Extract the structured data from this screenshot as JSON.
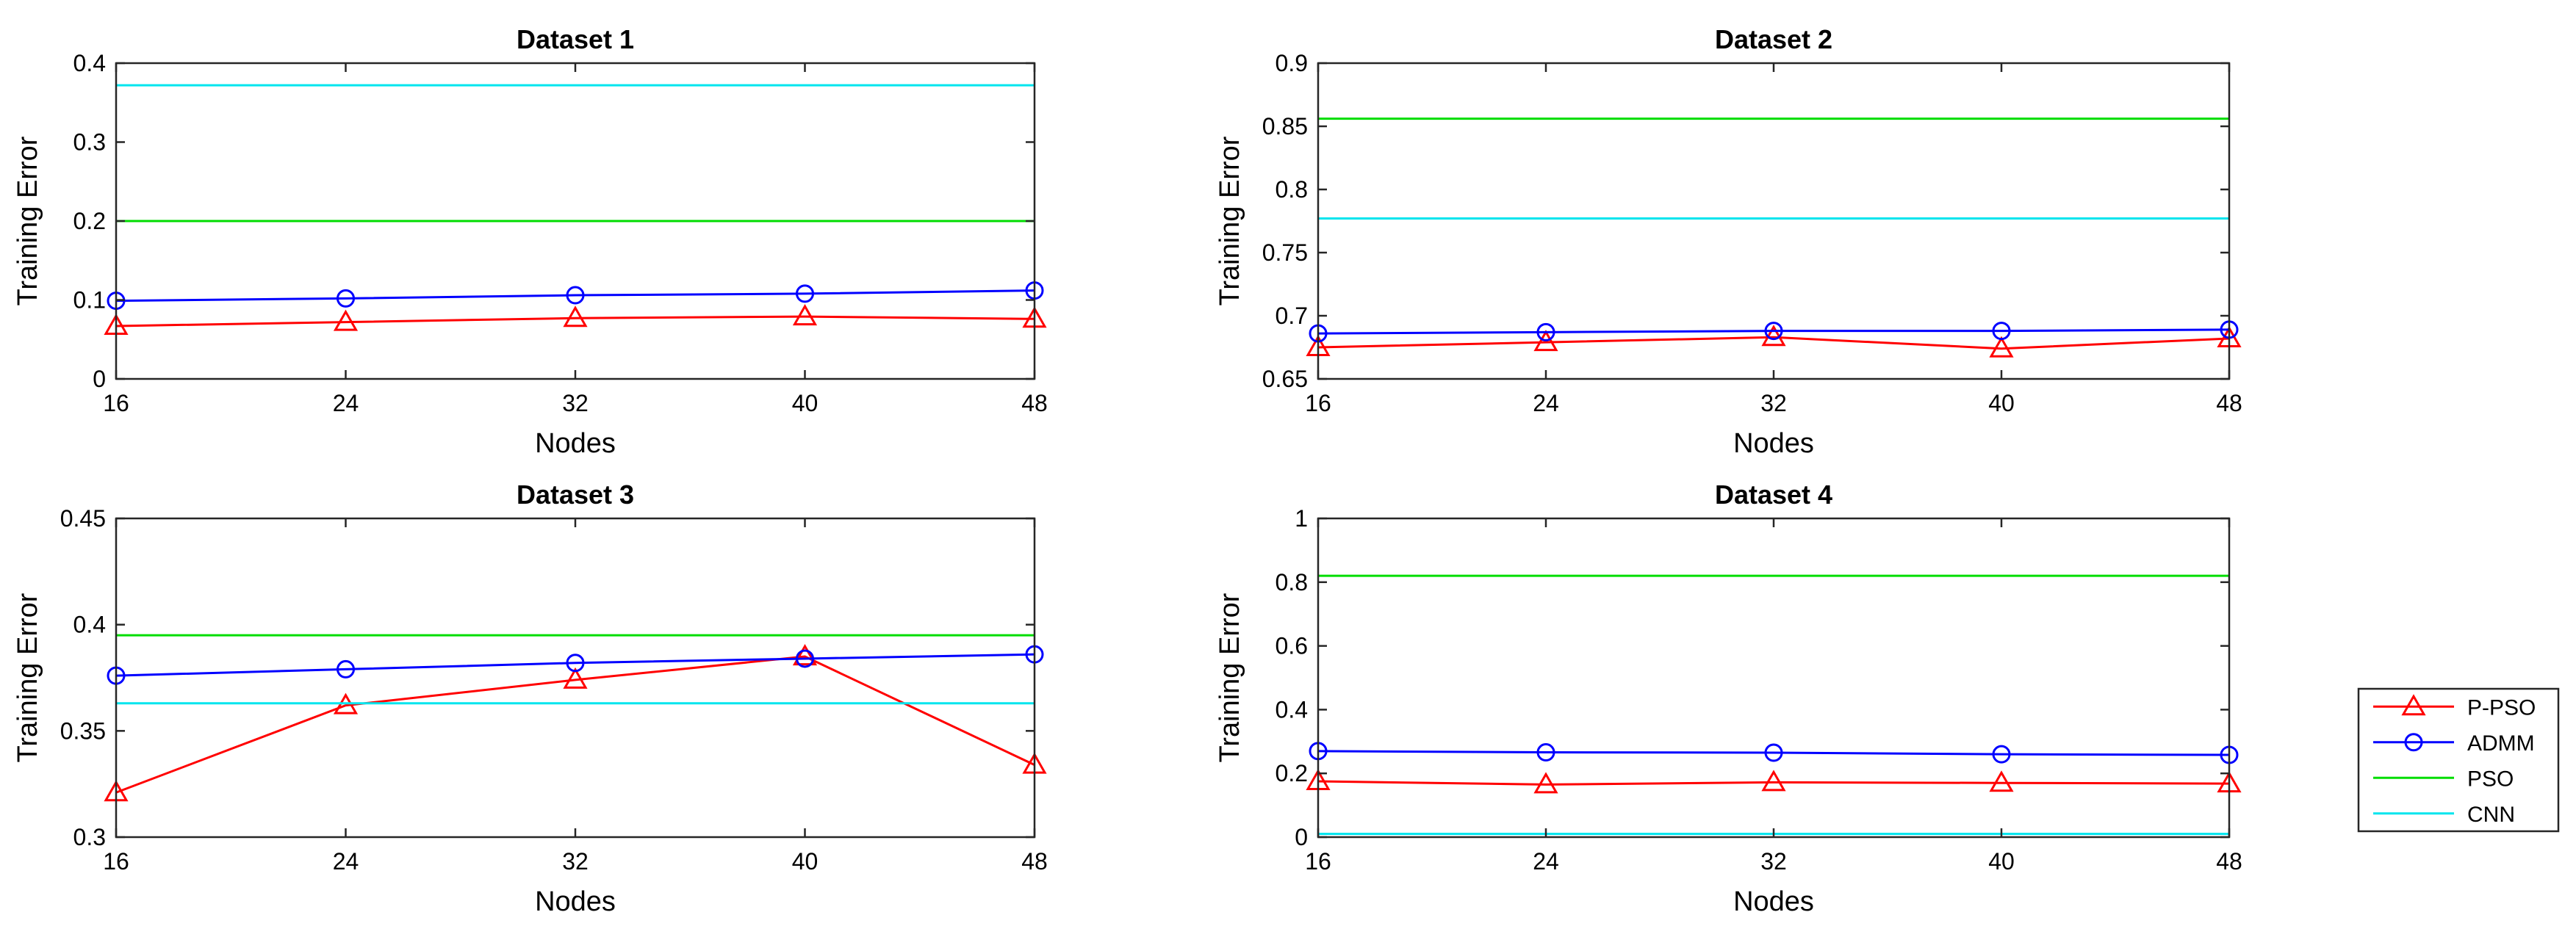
{
  "chart_data": [
    {
      "type": "line",
      "title": "Dataset 1",
      "xlabel": "Nodes",
      "ylabel": "Training Error",
      "x": [
        16,
        24,
        32,
        40,
        48
      ],
      "xlim": [
        16,
        48
      ],
      "xticks": [
        "16",
        "24",
        "32",
        "40",
        "48"
      ],
      "ylim": [
        0,
        0.4
      ],
      "yticks": [
        "0",
        "0.1",
        "0.2",
        "0.3",
        "0.4"
      ],
      "series": [
        {
          "name": "P-PSO",
          "values": [
            0.067,
            0.072,
            0.077,
            0.079,
            0.076
          ]
        },
        {
          "name": "ADMM",
          "values": [
            0.099,
            0.102,
            0.106,
            0.108,
            0.112
          ]
        },
        {
          "name": "PSO",
          "values": [
            0.2,
            0.2,
            0.2,
            0.2,
            0.2
          ]
        },
        {
          "name": "CNN",
          "values": [
            0.372,
            0.372,
            0.372,
            0.372,
            0.372
          ]
        }
      ]
    },
    {
      "type": "line",
      "title": "Dataset 2",
      "xlabel": "Nodes",
      "ylabel": "Training Error",
      "x": [
        16,
        24,
        32,
        40,
        48
      ],
      "xlim": [
        16,
        48
      ],
      "xticks": [
        "16",
        "24",
        "32",
        "40",
        "48"
      ],
      "ylim": [
        0.65,
        0.9
      ],
      "yticks": [
        "0.65",
        "0.7",
        "0.75",
        "0.8",
        "0.85",
        "0.9"
      ],
      "series": [
        {
          "name": "P-PSO",
          "values": [
            0.675,
            0.679,
            0.683,
            0.674,
            0.682
          ]
        },
        {
          "name": "ADMM",
          "values": [
            0.686,
            0.687,
            0.688,
            0.688,
            0.689
          ]
        },
        {
          "name": "PSO",
          "values": [
            0.856,
            0.856,
            0.856,
            0.856,
            0.856
          ]
        },
        {
          "name": "CNN",
          "values": [
            0.777,
            0.777,
            0.777,
            0.777,
            0.777
          ]
        }
      ]
    },
    {
      "type": "line",
      "title": "Dataset 3",
      "xlabel": "Nodes",
      "ylabel": "Training Error",
      "x": [
        16,
        24,
        32,
        40,
        48
      ],
      "xlim": [
        16,
        48
      ],
      "xticks": [
        "16",
        "24",
        "32",
        "40",
        "48"
      ],
      "ylim": [
        0.3,
        0.45
      ],
      "yticks": [
        "0.3",
        "0.35",
        "0.4",
        "0.45"
      ],
      "series": [
        {
          "name": "P-PSO",
          "values": [
            0.321,
            0.362,
            0.374,
            0.385,
            0.334
          ]
        },
        {
          "name": "ADMM",
          "values": [
            0.376,
            0.379,
            0.382,
            0.384,
            0.386
          ]
        },
        {
          "name": "PSO",
          "values": [
            0.395,
            0.395,
            0.395,
            0.395,
            0.395
          ]
        },
        {
          "name": "CNN",
          "values": [
            0.363,
            0.363,
            0.363,
            0.363,
            0.363
          ]
        }
      ]
    },
    {
      "type": "line",
      "title": "Dataset 4",
      "xlabel": "Nodes",
      "ylabel": "Training Error",
      "x": [
        16,
        24,
        32,
        40,
        48
      ],
      "xlim": [
        16,
        48
      ],
      "xticks": [
        "16",
        "24",
        "32",
        "40",
        "48"
      ],
      "ylim": [
        0,
        1
      ],
      "yticks": [
        "0",
        "0.2",
        "0.4",
        "0.6",
        "0.8",
        "1"
      ],
      "series": [
        {
          "name": "P-PSO",
          "values": [
            0.175,
            0.165,
            0.172,
            0.17,
            0.168
          ]
        },
        {
          "name": "ADMM",
          "values": [
            0.27,
            0.266,
            0.265,
            0.26,
            0.258
          ]
        },
        {
          "name": "PSO",
          "values": [
            0.82,
            0.82,
            0.82,
            0.82,
            0.82
          ]
        },
        {
          "name": "CNN",
          "values": [
            0.01,
            0.01,
            0.01,
            0.01,
            0.01
          ]
        }
      ]
    }
  ],
  "legend": {
    "placement": "right-middle",
    "entries": [
      {
        "name": "P-PSO",
        "marker": "triangle"
      },
      {
        "name": "ADMM",
        "marker": "circle"
      },
      {
        "name": "PSO",
        "marker": "none"
      },
      {
        "name": "CNN",
        "marker": "none"
      }
    ]
  },
  "colors": {
    "P-PSO": "#ff0000",
    "ADMM": "#0000ff",
    "PSO": "#00dd00",
    "CNN": "#00e5ee",
    "axis": "#262626"
  }
}
